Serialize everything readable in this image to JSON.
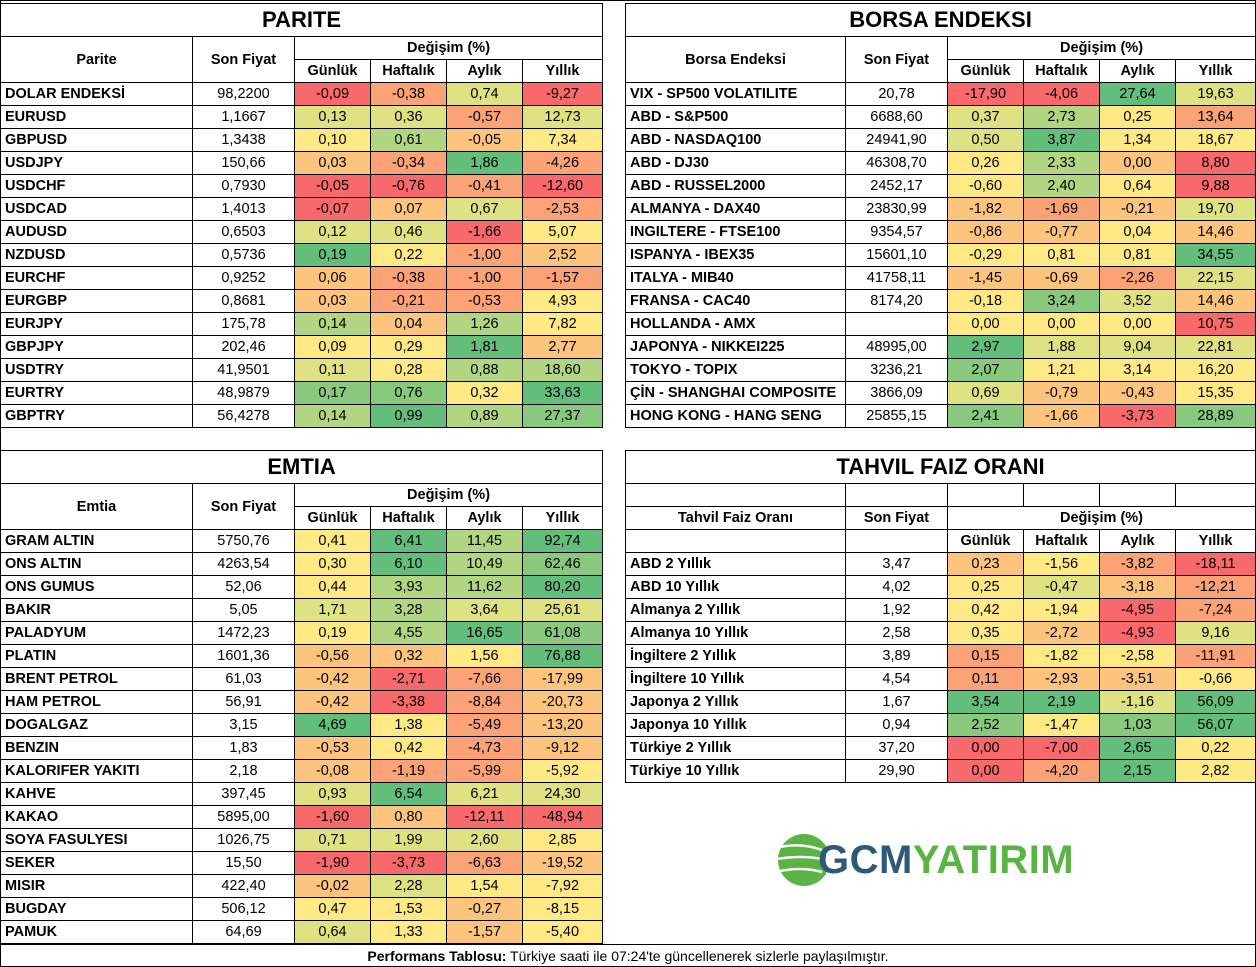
{
  "colors": {
    "red": "#f8696b",
    "orange": "#fba276",
    "light_orange": "#fdc47d",
    "yellow": "#ffe984",
    "yellow_green": "#dfe283",
    "light_green": "#b1d580",
    "green": "#88c97e",
    "dark_green": "#63be7b"
  },
  "common_headers": {
    "price": "Son Fiyat",
    "change": "Değişim (%)",
    "daily": "Günlük",
    "weekly": "Haftalık",
    "monthly": "Aylık",
    "yearly": "Yıllık"
  },
  "parite": {
    "title": "PARITE",
    "name_header": "Parite",
    "rows": [
      {
        "name": "DOLAR ENDEKSİ",
        "price": "98,2200",
        "d": "-0,09",
        "w": "-0,38",
        "m": "0,74",
        "y": "-9,27",
        "c": [
          "red",
          "orange",
          "yellow_green",
          "red"
        ]
      },
      {
        "name": "EURUSD",
        "price": "1,1667",
        "d": "0,13",
        "w": "0,36",
        "m": "-0,57",
        "y": "12,73",
        "c": [
          "yellow_green",
          "yellow_green",
          "orange",
          "yellow_green"
        ]
      },
      {
        "name": "GBPUSD",
        "price": "1,3438",
        "d": "0,10",
        "w": "0,61",
        "m": "-0,05",
        "y": "7,34",
        "c": [
          "yellow",
          "light_green",
          "light_orange",
          "yellow"
        ]
      },
      {
        "name": "USDJPY",
        "price": "150,66",
        "d": "0,03",
        "w": "-0,34",
        "m": "1,86",
        "y": "-4,26",
        "c": [
          "light_orange",
          "orange",
          "dark_green",
          "orange"
        ]
      },
      {
        "name": "USDCHF",
        "price": "0,7930",
        "d": "-0,05",
        "w": "-0,76",
        "m": "-0,41",
        "y": "-12,60",
        "c": [
          "red",
          "red",
          "orange",
          "red"
        ]
      },
      {
        "name": "USDCAD",
        "price": "1,4013",
        "d": "-0,07",
        "w": "0,07",
        "m": "0,67",
        "y": "-2,53",
        "c": [
          "red",
          "light_orange",
          "yellow_green",
          "orange"
        ]
      },
      {
        "name": "AUDUSD",
        "price": "0,6503",
        "d": "0,12",
        "w": "0,46",
        "m": "-1,66",
        "y": "5,07",
        "c": [
          "yellow_green",
          "yellow_green",
          "red",
          "yellow"
        ]
      },
      {
        "name": "NZDUSD",
        "price": "0,5736",
        "d": "0,19",
        "w": "0,22",
        "m": "-1,00",
        "y": "2,52",
        "c": [
          "dark_green",
          "yellow",
          "orange",
          "light_orange"
        ]
      },
      {
        "name": "EURCHF",
        "price": "0,9252",
        "d": "0,06",
        "w": "-0,38",
        "m": "-1,00",
        "y": "-1,57",
        "c": [
          "light_orange",
          "orange",
          "orange",
          "orange"
        ]
      },
      {
        "name": "EURGBP",
        "price": "0,8681",
        "d": "0,03",
        "w": "-0,21",
        "m": "-0,53",
        "y": "4,93",
        "c": [
          "light_orange",
          "orange",
          "orange",
          "yellow"
        ]
      },
      {
        "name": "EURJPY",
        "price": "175,78",
        "d": "0,14",
        "w": "0,04",
        "m": "1,26",
        "y": "7,82",
        "c": [
          "light_green",
          "light_orange",
          "light_green",
          "yellow"
        ]
      },
      {
        "name": "GBPJPY",
        "price": "202,46",
        "d": "0,09",
        "w": "0,29",
        "m": "1,81",
        "y": "2,77",
        "c": [
          "yellow",
          "yellow",
          "dark_green",
          "light_orange"
        ]
      },
      {
        "name": "USDTRY",
        "price": "41,9501",
        "d": "0,11",
        "w": "0,28",
        "m": "0,88",
        "y": "18,60",
        "c": [
          "yellow_green",
          "yellow",
          "light_green",
          "light_green"
        ]
      },
      {
        "name": "EURTRY",
        "price": "48,9879",
        "d": "0,17",
        "w": "0,76",
        "m": "0,32",
        "y": "33,63",
        "c": [
          "green",
          "green",
          "yellow",
          "dark_green"
        ]
      },
      {
        "name": "GBPTRY",
        "price": "56,4278",
        "d": "0,14",
        "w": "0,99",
        "m": "0,89",
        "y": "27,37",
        "c": [
          "light_green",
          "dark_green",
          "light_green",
          "green"
        ]
      }
    ]
  },
  "borsa": {
    "title": "BORSA ENDEKSI",
    "name_header": "Borsa Endeksi",
    "rows": [
      {
        "name": "VIX  - SP500 VOLATILITE",
        "price": "20,78",
        "d": "-17,90",
        "w": "-4,06",
        "m": "27,64",
        "y": "19,63",
        "c": [
          "red",
          "red",
          "dark_green",
          "yellow_green"
        ]
      },
      {
        "name": "ABD - S&P500",
        "price": "6688,60",
        "d": "0,37",
        "w": "2,73",
        "m": "0,25",
        "y": "13,64",
        "c": [
          "yellow_green",
          "light_green",
          "yellow",
          "orange"
        ]
      },
      {
        "name": "ABD - NASDAQ100",
        "price": "24941,90",
        "d": "0,50",
        "w": "3,87",
        "m": "1,34",
        "y": "18,67",
        "c": [
          "yellow_green",
          "dark_green",
          "yellow",
          "yellow"
        ]
      },
      {
        "name": "ABD - DJ30",
        "price": "46308,70",
        "d": "0,26",
        "w": "2,33",
        "m": "0,00",
        "y": "8,80",
        "c": [
          "yellow",
          "light_green",
          "light_orange",
          "red"
        ]
      },
      {
        "name": "ABD - RUSSEL2000",
        "price": "2452,17",
        "d": "-0,60",
        "w": "2,40",
        "m": "0,64",
        "y": "9,88",
        "c": [
          "yellow",
          "light_green",
          "yellow",
          "red"
        ]
      },
      {
        "name": "ALMANYA - DAX40",
        "price": "23830,99",
        "d": "-1,82",
        "w": "-1,69",
        "m": "-0,21",
        "y": "19,70",
        "c": [
          "light_orange",
          "orange",
          "light_orange",
          "yellow_green"
        ]
      },
      {
        "name": "INGILTERE - FTSE100",
        "price": "9354,57",
        "d": "-0,86",
        "w": "-0,77",
        "m": "0,04",
        "y": "14,46",
        "c": [
          "light_orange",
          "light_orange",
          "yellow",
          "light_orange"
        ]
      },
      {
        "name": "ISPANYA - IBEX35",
        "price": "15601,10",
        "d": "-0,29",
        "w": "0,81",
        "m": "0,81",
        "y": "34,55",
        "c": [
          "yellow",
          "yellow",
          "yellow",
          "dark_green"
        ]
      },
      {
        "name": "ITALYA - MIB40",
        "price": "41758,11",
        "d": "-1,45",
        "w": "-0,69",
        "m": "-2,26",
        "y": "22,15",
        "c": [
          "light_orange",
          "light_orange",
          "orange",
          "yellow_green"
        ]
      },
      {
        "name": "FRANSA - CAC40",
        "price": "8174,20",
        "d": "-0,18",
        "w": "3,24",
        "m": "3,52",
        "y": "14,46",
        "c": [
          "yellow",
          "green",
          "yellow_green",
          "light_orange"
        ]
      },
      {
        "name": "HOLLANDA - AMX",
        "price": "",
        "d": "0,00",
        "w": "0,00",
        "m": "0,00",
        "y": "10,75",
        "c": [
          "yellow",
          "yellow",
          "yellow",
          "red"
        ]
      },
      {
        "name": "JAPONYA - NIKKEI225",
        "price": "48995,00",
        "d": "2,97",
        "w": "1,88",
        "m": "9,04",
        "y": "22,81",
        "c": [
          "dark_green",
          "yellow_green",
          "yellow_green",
          "yellow_green"
        ]
      },
      {
        "name": "TOKYO - TOPIX",
        "price": "3236,21",
        "d": "2,07",
        "w": "1,21",
        "m": "3,14",
        "y": "16,20",
        "c": [
          "green",
          "yellow",
          "yellow",
          "yellow"
        ]
      },
      {
        "name": "ÇİN - SHANGHAI COMPOSITE",
        "price": "3866,09",
        "d": "0,69",
        "w": "-0,79",
        "m": "-0,43",
        "y": "15,35",
        "c": [
          "yellow_green",
          "light_orange",
          "light_orange",
          "yellow"
        ]
      },
      {
        "name": "HONG KONG - HANG SENG",
        "price": "25855,15",
        "d": "2,41",
        "w": "-1,66",
        "m": "-3,73",
        "y": "28,89",
        "c": [
          "green",
          "light_orange",
          "red",
          "green"
        ]
      }
    ]
  },
  "emtia": {
    "title": "EMTIA",
    "name_header": "Emtia",
    "rows": [
      {
        "name": "GRAM ALTIN",
        "price": "5750,76",
        "d": "0,41",
        "w": "6,41",
        "m": "11,45",
        "y": "92,74",
        "c": [
          "yellow",
          "dark_green",
          "light_green",
          "dark_green"
        ]
      },
      {
        "name": "ONS ALTIN",
        "price": "4263,54",
        "d": "0,30",
        "w": "6,10",
        "m": "10,49",
        "y": "62,46",
        "c": [
          "yellow",
          "dark_green",
          "light_green",
          "green"
        ]
      },
      {
        "name": "ONS GUMUS",
        "price": "52,06",
        "d": "0,44",
        "w": "3,93",
        "m": "11,62",
        "y": "80,20",
        "c": [
          "yellow",
          "light_green",
          "light_green",
          "dark_green"
        ]
      },
      {
        "name": "BAKIR",
        "price": "5,05",
        "d": "1,71",
        "w": "3,28",
        "m": "3,64",
        "y": "25,61",
        "c": [
          "yellow_green",
          "light_green",
          "yellow_green",
          "yellow_green"
        ]
      },
      {
        "name": "PALADYUM",
        "price": "1472,23",
        "d": "0,19",
        "w": "4,55",
        "m": "16,65",
        "y": "61,08",
        "c": [
          "yellow",
          "light_green",
          "dark_green",
          "green"
        ]
      },
      {
        "name": "PLATIN",
        "price": "1601,36",
        "d": "-0,56",
        "w": "0,32",
        "m": "1,56",
        "y": "76,88",
        "c": [
          "light_orange",
          "light_orange",
          "yellow",
          "dark_green"
        ]
      },
      {
        "name": "BRENT PETROL",
        "price": "61,03",
        "d": "-0,42",
        "w": "-2,71",
        "m": "-7,66",
        "y": "-17,99",
        "c": [
          "light_orange",
          "red",
          "orange",
          "light_orange"
        ]
      },
      {
        "name": "HAM PETROL",
        "price": "56,91",
        "d": "-0,42",
        "w": "-3,38",
        "m": "-8,84",
        "y": "-20,73",
        "c": [
          "light_orange",
          "red",
          "orange",
          "light_orange"
        ]
      },
      {
        "name": "DOGALGAZ",
        "price": "3,15",
        "d": "4,69",
        "w": "1,38",
        "m": "-5,49",
        "y": "-13,20",
        "c": [
          "dark_green",
          "yellow",
          "orange",
          "light_orange"
        ]
      },
      {
        "name": "BENZIN",
        "price": "1,83",
        "d": "-0,53",
        "w": "0,42",
        "m": "-4,73",
        "y": "-9,12",
        "c": [
          "light_orange",
          "yellow",
          "orange",
          "light_orange"
        ]
      },
      {
        "name": "KALORIFER YAKITI",
        "price": "2,18",
        "d": "-0,08",
        "w": "-1,19",
        "m": "-5,99",
        "y": "-5,92",
        "c": [
          "light_orange",
          "orange",
          "orange",
          "yellow"
        ]
      },
      {
        "name": "KAHVE",
        "price": "397,45",
        "d": "0,93",
        "w": "6,54",
        "m": "6,21",
        "y": "24,30",
        "c": [
          "yellow_green",
          "dark_green",
          "yellow_green",
          "yellow_green"
        ]
      },
      {
        "name": "KAKAO",
        "price": "5895,00",
        "d": "-1,60",
        "w": "0,80",
        "m": "-12,11",
        "y": "-48,94",
        "c": [
          "red",
          "light_orange",
          "red",
          "red"
        ]
      },
      {
        "name": "SOYA FASULYESI",
        "price": "1026,75",
        "d": "0,71",
        "w": "1,99",
        "m": "2,60",
        "y": "2,85",
        "c": [
          "yellow_green",
          "yellow_green",
          "yellow_green",
          "yellow"
        ]
      },
      {
        "name": "SEKER",
        "price": "15,50",
        "d": "-1,90",
        "w": "-3,73",
        "m": "-6,63",
        "y": "-19,52",
        "c": [
          "red",
          "red",
          "orange",
          "light_orange"
        ]
      },
      {
        "name": "MISIR",
        "price": "422,40",
        "d": "-0,02",
        "w": "2,28",
        "m": "1,54",
        "y": "-7,92",
        "c": [
          "light_orange",
          "yellow_green",
          "yellow",
          "yellow"
        ]
      },
      {
        "name": "BUGDAY",
        "price": "506,12",
        "d": "0,47",
        "w": "1,53",
        "m": "-0,27",
        "y": "-8,15",
        "c": [
          "yellow",
          "yellow",
          "light_orange",
          "yellow"
        ]
      },
      {
        "name": "PAMUK",
        "price": "64,69",
        "d": "0,64",
        "w": "1,33",
        "m": "-1,57",
        "y": "-5,40",
        "c": [
          "yellow_green",
          "yellow",
          "light_orange",
          "yellow"
        ]
      }
    ]
  },
  "tahvil": {
    "title": "TAHVIL FAIZ ORANI",
    "name_header": "Tahvil Faiz Oranı",
    "rows": [
      {
        "name": "ABD 2 Yıllık",
        "price": "3,47",
        "d": "0,23",
        "w": "-1,56",
        "m": "-3,82",
        "y": "-18,11",
        "c": [
          "light_orange",
          "yellow",
          "orange",
          "red"
        ]
      },
      {
        "name": "ABD 10 Yıllık",
        "price": "4,02",
        "d": "0,25",
        "w": "-0,47",
        "m": "-3,18",
        "y": "-12,21",
        "c": [
          "yellow",
          "yellow_green",
          "light_orange",
          "orange"
        ]
      },
      {
        "name": "Almanya 2 Yıllık",
        "price": "1,92",
        "d": "0,42",
        "w": "-1,94",
        "m": "-4,95",
        "y": "-7,24",
        "c": [
          "yellow",
          "yellow",
          "red",
          "orange"
        ]
      },
      {
        "name": "Almanya 10 Yıllık",
        "price": "2,58",
        "d": "0,35",
        "w": "-2,72",
        "m": "-4,93",
        "y": "9,16",
        "c": [
          "yellow",
          "light_orange",
          "red",
          "yellow_green"
        ]
      },
      {
        "name": "İngiltere 2 Yıllık",
        "price": "3,89",
        "d": "0,15",
        "w": "-1,82",
        "m": "-2,58",
        "y": "-11,91",
        "c": [
          "orange",
          "yellow",
          "yellow",
          "orange"
        ]
      },
      {
        "name": "İngiltere 10 Yıllık",
        "price": "4,54",
        "d": "0,11",
        "w": "-2,93",
        "m": "-3,51",
        "y": "-0,66",
        "c": [
          "orange",
          "light_orange",
          "light_orange",
          "yellow"
        ]
      },
      {
        "name": "Japonya 2 Yıllık",
        "price": "1,67",
        "d": "3,54",
        "w": "2,19",
        "m": "-1,16",
        "y": "56,09",
        "c": [
          "dark_green",
          "dark_green",
          "yellow_green",
          "dark_green"
        ]
      },
      {
        "name": "Japonya 10 Yıllık",
        "price": "0,94",
        "d": "2,52",
        "w": "-1,47",
        "m": "1,03",
        "y": "56,07",
        "c": [
          "green",
          "yellow",
          "green",
          "dark_green"
        ]
      },
      {
        "name": "Türkiye 2 Yıllık",
        "price": "37,20",
        "d": "0,00",
        "w": "-7,00",
        "m": "2,65",
        "y": "0,22",
        "c": [
          "red",
          "red",
          "dark_green",
          "yellow"
        ]
      },
      {
        "name": "Türkiye 10 Yıllık",
        "price": "29,90",
        "d": "0,00",
        "w": "-4,20",
        "m": "2,15",
        "y": "2,82",
        "c": [
          "red",
          "orange",
          "dark_green",
          "yellow"
        ]
      }
    ]
  },
  "logo": {
    "part1": "GCM",
    "part2": "YATIRIM"
  },
  "footer": {
    "bold": "Performans Tablosu:",
    "text": " Türkiye saati ile 07:24'te güncellenerek sizlerle paylaşılmıştır."
  }
}
